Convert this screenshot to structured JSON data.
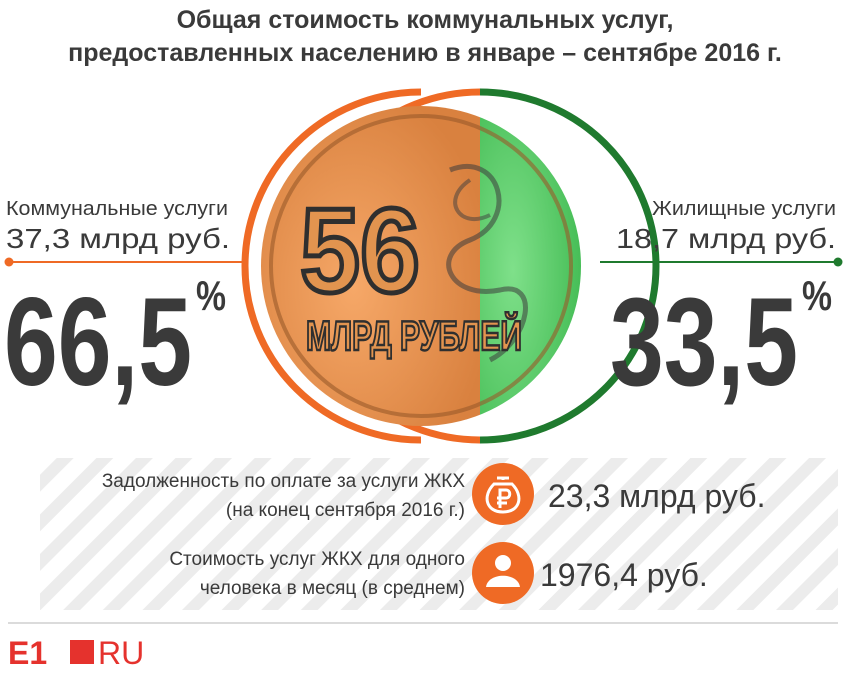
{
  "header": {
    "title": [
      "Общая стоимость коммунальных услуг,",
      "предоставленных населению в январе – сентябре 2016 г."
    ]
  },
  "coin": {
    "number": "56",
    "label": "МЛРД РУБЛЕЙ"
  },
  "left": {
    "label": "Коммунальные услуги",
    "amount": "37,3 млрд руб.",
    "percent": "66,5",
    "unit": "%"
  },
  "right": {
    "label": "Жилищные услуги",
    "amount": "18,7 млрд руб.",
    "percent": "33,5",
    "unit": "%"
  },
  "facts": [
    {
      "text": [
        "Задолженность по оплате за услуги ЖКХ",
        "(на конец сентября 2016 г.)"
      ],
      "value": "23,3 млрд руб."
    },
    {
      "text": [
        "Стоимость услуг ЖКХ для одного",
        "человека в месяц (в среднем)"
      ],
      "value": "1976,4 руб."
    }
  ],
  "logo": {
    "brand": "E1",
    "domain": "RU"
  }
}
